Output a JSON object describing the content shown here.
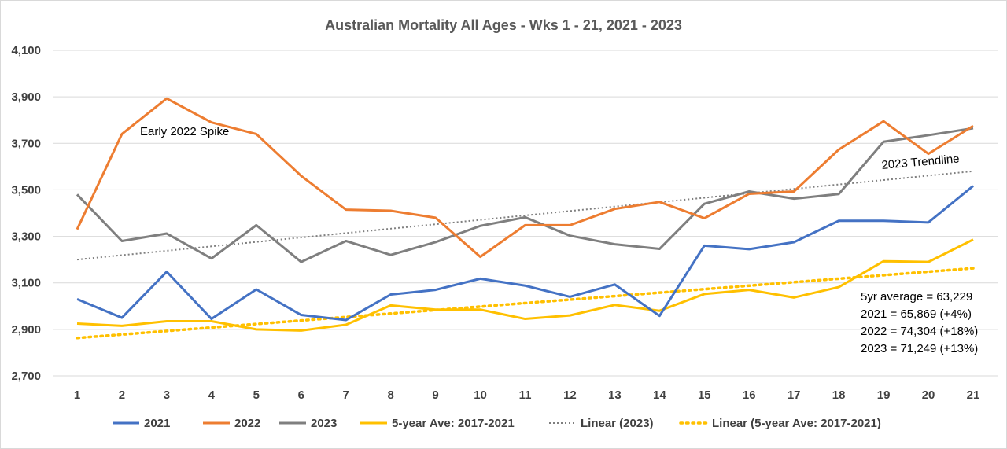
{
  "chart_data": {
    "type": "line",
    "title": "Australian Mortality All Ages - Wks 1 - 21, 2021 - 2023",
    "xlabel": "",
    "ylabel": "",
    "x": [
      1,
      2,
      3,
      4,
      5,
      6,
      7,
      8,
      9,
      10,
      11,
      12,
      13,
      14,
      15,
      16,
      17,
      18,
      19,
      20,
      21
    ],
    "ylim": [
      2700,
      4100
    ],
    "yticks": [
      2700,
      2900,
      3100,
      3300,
      3500,
      3700,
      3900,
      4100
    ],
    "ytick_labels": [
      "2,700",
      "2,900",
      "3,100",
      "3,300",
      "3,500",
      "3,700",
      "3,900",
      "4,100"
    ],
    "grid": true,
    "legend_position": "bottom",
    "series": [
      {
        "name": "2021",
        "color": "#4472C4",
        "style": "solid",
        "values": [
          3030,
          2950,
          3148,
          2945,
          3072,
          2962,
          2940,
          3050,
          3070,
          3118,
          3088,
          3040,
          3093,
          2958,
          3260,
          3245,
          3275,
          3367,
          3367,
          3360,
          3517
        ]
      },
      {
        "name": "2022",
        "color": "#ED7D31",
        "style": "solid",
        "values": [
          3330,
          3740,
          3893,
          3790,
          3740,
          3560,
          3415,
          3410,
          3380,
          3212,
          3348,
          3348,
          3418,
          3448,
          3378,
          3483,
          3493,
          3673,
          3795,
          3655,
          3775
        ]
      },
      {
        "name": "2023",
        "color": "#7F7F7F",
        "style": "solid",
        "values": [
          3480,
          3280,
          3312,
          3205,
          3348,
          3190,
          3280,
          3220,
          3275,
          3345,
          3382,
          3303,
          3266,
          3246,
          3440,
          3493,
          3462,
          3482,
          3707,
          3735,
          3765
        ]
      },
      {
        "name": "5-year Ave: 2017-2021",
        "color": "#FFC000",
        "style": "solid",
        "values": [
          2925,
          2915,
          2935,
          2935,
          2900,
          2895,
          2920,
          3003,
          2985,
          2985,
          2945,
          2960,
          3005,
          2980,
          3052,
          3070,
          3037,
          3082,
          3193,
          3190,
          3286
        ]
      },
      {
        "name": "Linear (2023)",
        "color": "#7F7F7F",
        "style": "dotted",
        "values": [
          3200,
          3219,
          3238,
          3257,
          3276,
          3295,
          3314,
          3333,
          3352,
          3371,
          3390,
          3409,
          3428,
          3447,
          3466,
          3485,
          3504,
          3523,
          3542,
          3561,
          3580
        ]
      },
      {
        "name": "Linear (5-year Ave: 2017-2021)",
        "color": "#FFC000",
        "style": "dotted-thick",
        "values": [
          2863,
          2878,
          2893,
          2908,
          2923,
          2938,
          2953,
          2968,
          2983,
          2998,
          3013,
          3028,
          3043,
          3058,
          3073,
          3088,
          3103,
          3118,
          3133,
          3148,
          3163
        ]
      }
    ],
    "annotations": [
      {
        "text": "Early 2022 Spike"
      },
      {
        "text": "2023 Trendline"
      }
    ],
    "summary_box": [
      "5yr average = 63,229",
      "2021 = 65,869 (+4%)",
      "2022 = 74,304 (+18%)",
      "2023 = 71,249 (+13%)"
    ]
  }
}
